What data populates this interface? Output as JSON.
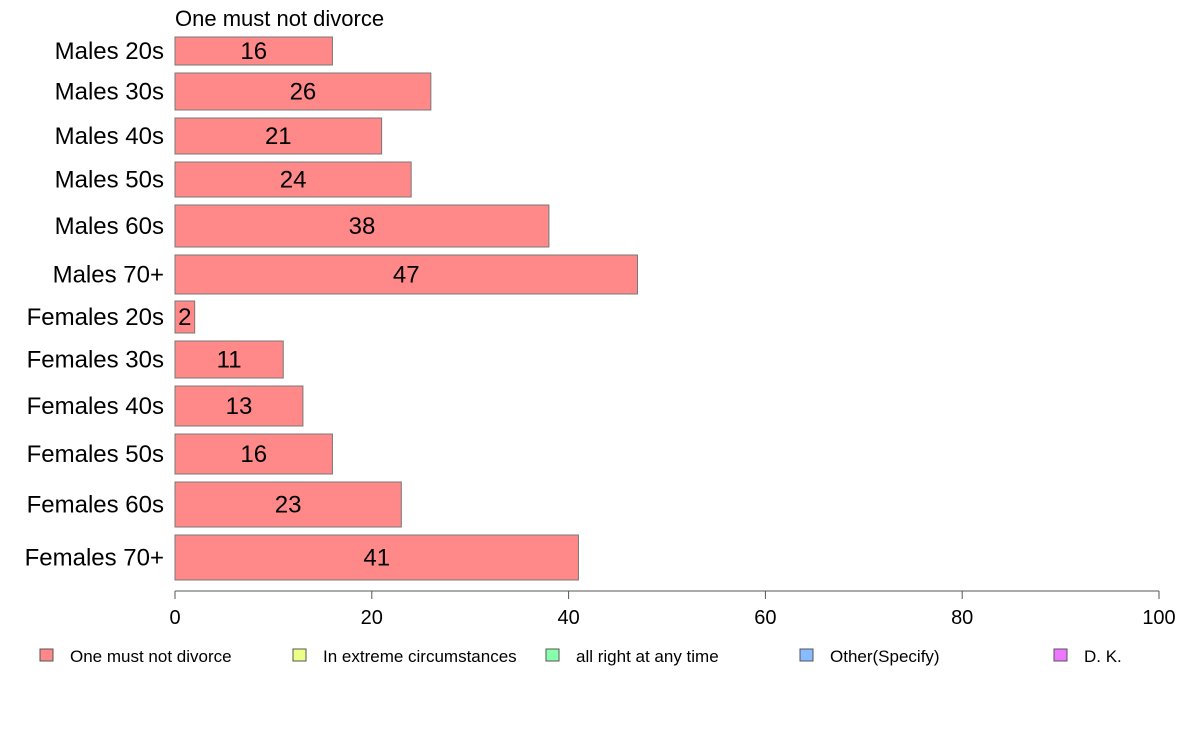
{
  "chart_data": {
    "type": "bar",
    "orientation": "horizontal",
    "series_title": "One must not divorce",
    "categories": [
      "Males 20s",
      "Males 30s",
      "Males 40s",
      "Males 50s",
      "Males 60s",
      "Males 70+",
      "Females 20s",
      "Females 30s",
      "Females 40s",
      "Females 50s",
      "Females 60s",
      "Females 70+"
    ],
    "series": [
      {
        "name": "One must not divorce",
        "values": [
          16,
          26,
          21,
          24,
          38,
          47,
          2,
          11,
          13,
          16,
          23,
          41
        ]
      }
    ],
    "xlim": [
      0,
      100
    ],
    "xticks": [
      0,
      20,
      40,
      60,
      80,
      100
    ],
    "grid": false,
    "legend_position": "bottom",
    "legend": [
      {
        "label": "One must not divorce",
        "color": "#ff8888"
      },
      {
        "label": "In extreme circumstances",
        "color": "#eeff88"
      },
      {
        "label": "all right at any time",
        "color": "#88ffaa"
      },
      {
        "label": "Other(Specify)",
        "color": "#88bbff"
      },
      {
        "label": "D. K.",
        "color": "#ee77ff"
      }
    ]
  }
}
